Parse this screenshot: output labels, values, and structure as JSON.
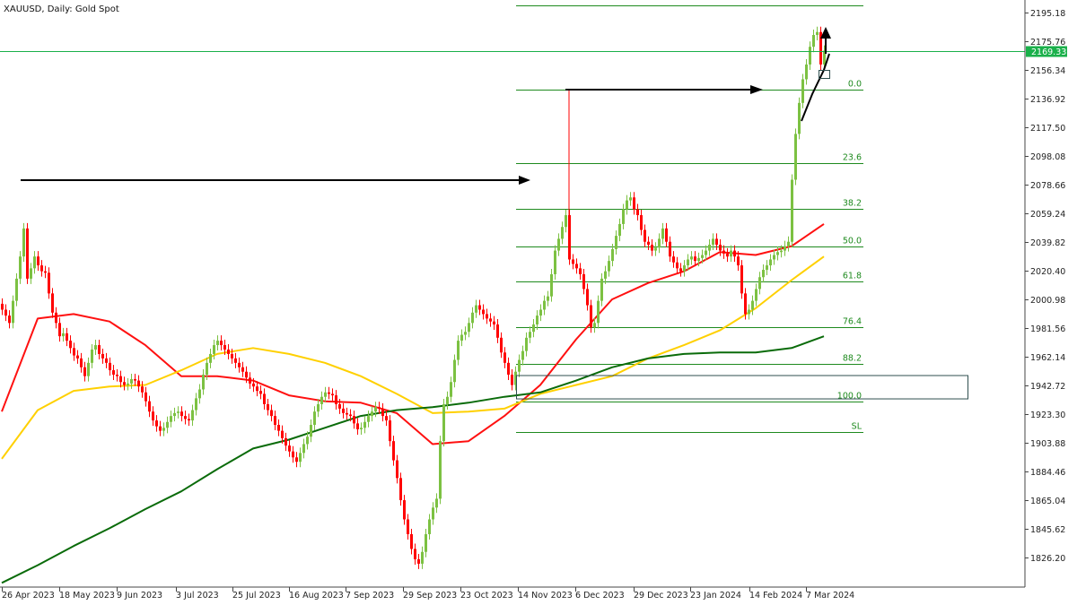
{
  "chart_data": {
    "type": "candlestick",
    "title": "XAUUSD, Daily: Gold Spot",
    "ylim": [
      1810,
      2205
    ],
    "y_ticks": [
      "2195.18",
      "2175.76",
      "2156.34",
      "2136.92",
      "2117.50",
      "2098.08",
      "2078.66",
      "2059.24",
      "2039.82",
      "2020.40",
      "2000.98",
      "1981.56",
      "1962.14",
      "1942.72",
      "1923.30",
      "1903.88",
      "1884.46",
      "1865.04",
      "1845.62",
      "1826.20"
    ],
    "x_ticks": [
      "26 Apr 2023",
      "18 May 2023",
      "9 Jun 2023",
      "3 Jul 2023",
      "25 Jul 2023",
      "16 Aug 2023",
      "7 Sep 2023",
      "29 Sep 2023",
      "23 Oct 2023",
      "14 Nov 2023",
      "6 Dec 2023",
      "29 Dec 2023",
      "23 Jan 2024",
      "14 Feb 2024",
      "7 Mar 2024"
    ],
    "current_price": "2169.33",
    "colors": {
      "up": "#7cc142",
      "down": "#ff0000",
      "ma_fast": "#ff1010",
      "ma_mid": "#ffd000",
      "ma_slow": "#0a6b0a",
      "fib": "#1e8a1e",
      "current": "#1ab04a"
    },
    "closes": [
      1994,
      1990,
      1985,
      2000,
      2015,
      2030,
      2049,
      2015,
      2022,
      2030,
      2024,
      2020,
      2019,
      2005,
      1992,
      1985,
      1976,
      1978,
      1973,
      1968,
      1963,
      1961,
      1955,
      1949,
      1958,
      1967,
      1970,
      1964,
      1961,
      1958,
      1953,
      1950,
      1949,
      1945,
      1943,
      1944,
      1947,
      1946,
      1942,
      1938,
      1932,
      1925,
      1919,
      1915,
      1912,
      1914,
      1918,
      1922,
      1924,
      1925,
      1922,
      1920,
      1919,
      1926,
      1934,
      1940,
      1950,
      1958,
      1964,
      1970,
      1973,
      1970,
      1967,
      1964,
      1961,
      1958,
      1955,
      1952,
      1948,
      1944,
      1942,
      1939,
      1937,
      1930,
      1926,
      1922,
      1916,
      1912,
      1907,
      1902,
      1898,
      1894,
      1891,
      1897,
      1903,
      1908,
      1916,
      1925,
      1930,
      1935,
      1938,
      1937,
      1936,
      1930,
      1927,
      1924,
      1923,
      1922,
      1917,
      1913,
      1914,
      1918,
      1922,
      1925,
      1928,
      1927,
      1922,
      1919,
      1905,
      1892,
      1880,
      1865,
      1852,
      1842,
      1832,
      1825,
      1822,
      1830,
      1842,
      1852,
      1860,
      1866,
      1905,
      1930,
      1935,
      1945,
      1960,
      1973,
      1977,
      1979,
      1985,
      1992,
      1997,
      1994,
      1991,
      1988,
      1986,
      1984,
      1975,
      1965,
      1958,
      1950,
      1943,
      1952,
      1960,
      1966,
      1975,
      1979,
      1984,
      1990,
      1994,
      2000,
      2003,
      2018,
      2034,
      2042,
      2050,
      2058,
      2028,
      2025,
      2022,
      2018,
      2008,
      1997,
      1982,
      1985,
      2000,
      2015,
      2020,
      2027,
      2035,
      2044,
      2052,
      2062,
      2068,
      2070,
      2062,
      2058,
      2048,
      2040,
      2038,
      2034,
      2036,
      2042,
      2049,
      2040,
      2030,
      2026,
      2022,
      2020,
      2024,
      2028,
      2030,
      2027,
      2029,
      2031,
      2034,
      2038,
      2042,
      2038,
      2034,
      2032,
      2030,
      2034,
      2030,
      2024,
      2005,
      1991,
      1994,
      2000,
      2008,
      2016,
      2021,
      2024,
      2028,
      2031,
      2033,
      2034,
      2037,
      2040,
      2082,
      2113,
      2134,
      2150,
      2160,
      2172,
      2180,
      2182,
      2160,
      2169.33
    ],
    "moving_averages": [
      {
        "color": "#ff1010",
        "sample_every_bars": 10,
        "values": [
          1925,
          1988,
          1991,
          1986,
          1970,
          1949,
          1949,
          1946,
          1936,
          1932,
          1931,
          1924,
          1903,
          1905,
          1922,
          1943,
          1974,
          2001,
          2012,
          2020,
          2033,
          2031,
          2037,
          2052
        ]
      },
      {
        "color": "#ffd000",
        "sample_every_bars": 10,
        "values": [
          1893,
          1926,
          1939,
          1942,
          1943,
          1953,
          1964,
          1968,
          1964,
          1958,
          1949,
          1937,
          1924,
          1925,
          1927,
          1937,
          1943,
          1949,
          1961,
          1970,
          1980,
          1995,
          2014,
          2030
        ]
      },
      {
        "color": "#0a6b0a",
        "sample_every_bars": 10,
        "values": [
          1809,
          1821,
          1834,
          1846,
          1859,
          1871,
          1886,
          1900,
          1906,
          1914,
          1922,
          1926,
          1928,
          1931,
          1935,
          1938,
          1946,
          1955,
          1961,
          1964,
          1965,
          1965,
          1968,
          1976
        ]
      }
    ],
    "fibonacci": [
      {
        "label": "",
        "price": 2200
      },
      {
        "label": "0.0",
        "price": 2143
      },
      {
        "label": "23.6",
        "price": 2093
      },
      {
        "label": "38.2",
        "price": 2062
      },
      {
        "label": "50.0",
        "price": 2037
      },
      {
        "label": "61.8",
        "price": 2013
      },
      {
        "label": "76.4",
        "price": 1982
      },
      {
        "label": "88.2",
        "price": 1957
      },
      {
        "label": "100.0",
        "price": 1932
      },
      {
        "label": "SL",
        "price": 1911
      }
    ],
    "zone": {
      "top": 1949.4,
      "bottom": 1933.6
    },
    "arrows": [
      {
        "price": 2081.7
      },
      {
        "price": 2143
      }
    ]
  }
}
